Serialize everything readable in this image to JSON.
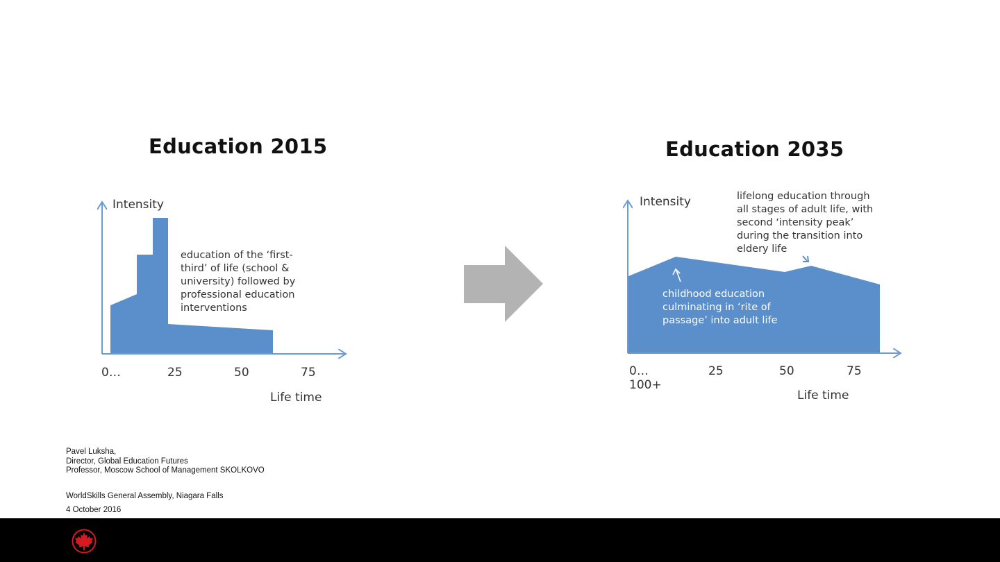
{
  "diagram_2015": {
    "title": "Education 2015",
    "y_axis_label": "Intensity",
    "x_axis_label": "Life time",
    "ticks": [
      "0…",
      "25",
      "50",
      "75"
    ],
    "annotation": [
      "education of the ‘first-",
      "third’ of life (school &",
      "university) followed by",
      "professional education",
      "interventions"
    ]
  },
  "diagram_2035": {
    "title": "Education 2035",
    "y_axis_label": "Intensity",
    "x_axis_label": "Life time",
    "ticks": [
      "0…",
      "25",
      "50",
      "75"
    ],
    "tick_extra": "100+",
    "annotation_top": [
      "lifelong education through",
      "all stages of adult life, with",
      "second ‘intensity peak’",
      "during the transition into",
      "eldery life"
    ],
    "annotation_inside": [
      "childhood education",
      "culminating  in ‘rite of",
      "passage’ into adult life"
    ]
  },
  "credits": {
    "lines": [
      "Pavel Luksha,",
      "Director, Global Education Futures",
      "Professor, Moscow School of Management SKOLKOVO"
    ],
    "event": "WorldSkills General Assembly, Niagara Falls",
    "date": "4 October 2016"
  },
  "colors": {
    "fill": "#5b8fcb",
    "axis": "#6b9bd1",
    "arrow": "#b3b3b3",
    "footer": "#000000",
    "logo": "#d71920"
  },
  "icons": {
    "transition": "right-arrow-icon",
    "logo": "maple-leaf-logo-icon"
  }
}
